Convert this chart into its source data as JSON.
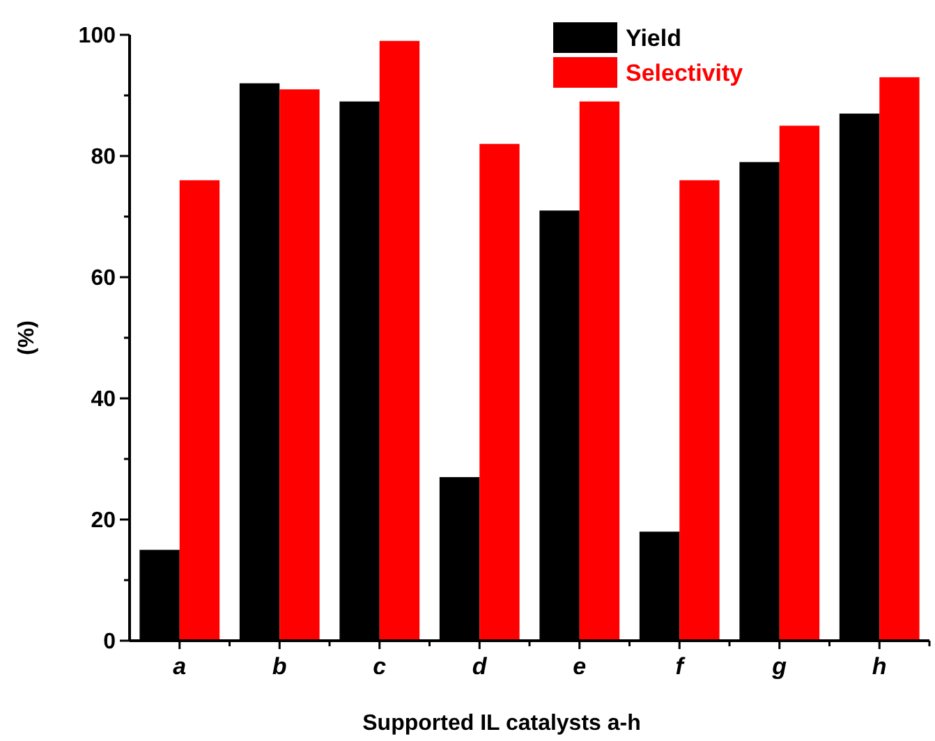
{
  "chart_data": {
    "type": "bar",
    "xlabel": "Supported IL catalysts a-h",
    "ylabel": "(%)",
    "categories": [
      "a",
      "b",
      "c",
      "d",
      "e",
      "f",
      "g",
      "h"
    ],
    "series": [
      {
        "name": "Yield",
        "color": "#000000",
        "values": [
          15,
          92,
          89,
          27,
          71,
          18,
          79,
          87
        ]
      },
      {
        "name": "Selectivity",
        "color": "#ff0000",
        "values": [
          76,
          91,
          99,
          82,
          89,
          76,
          85,
          93
        ]
      }
    ],
    "ylim": [
      0,
      100
    ],
    "yticks": [
      0,
      {
        "value": 10,
        "label": null
      },
      20,
      {
        "value": 30,
        "label": null
      },
      40,
      {
        "value": 50,
        "label": null
      },
      60,
      {
        "value": 70,
        "label": null
      },
      80,
      {
        "value": 90,
        "label": null
      },
      100
    ],
    "grid": false,
    "legend": "top right"
  }
}
